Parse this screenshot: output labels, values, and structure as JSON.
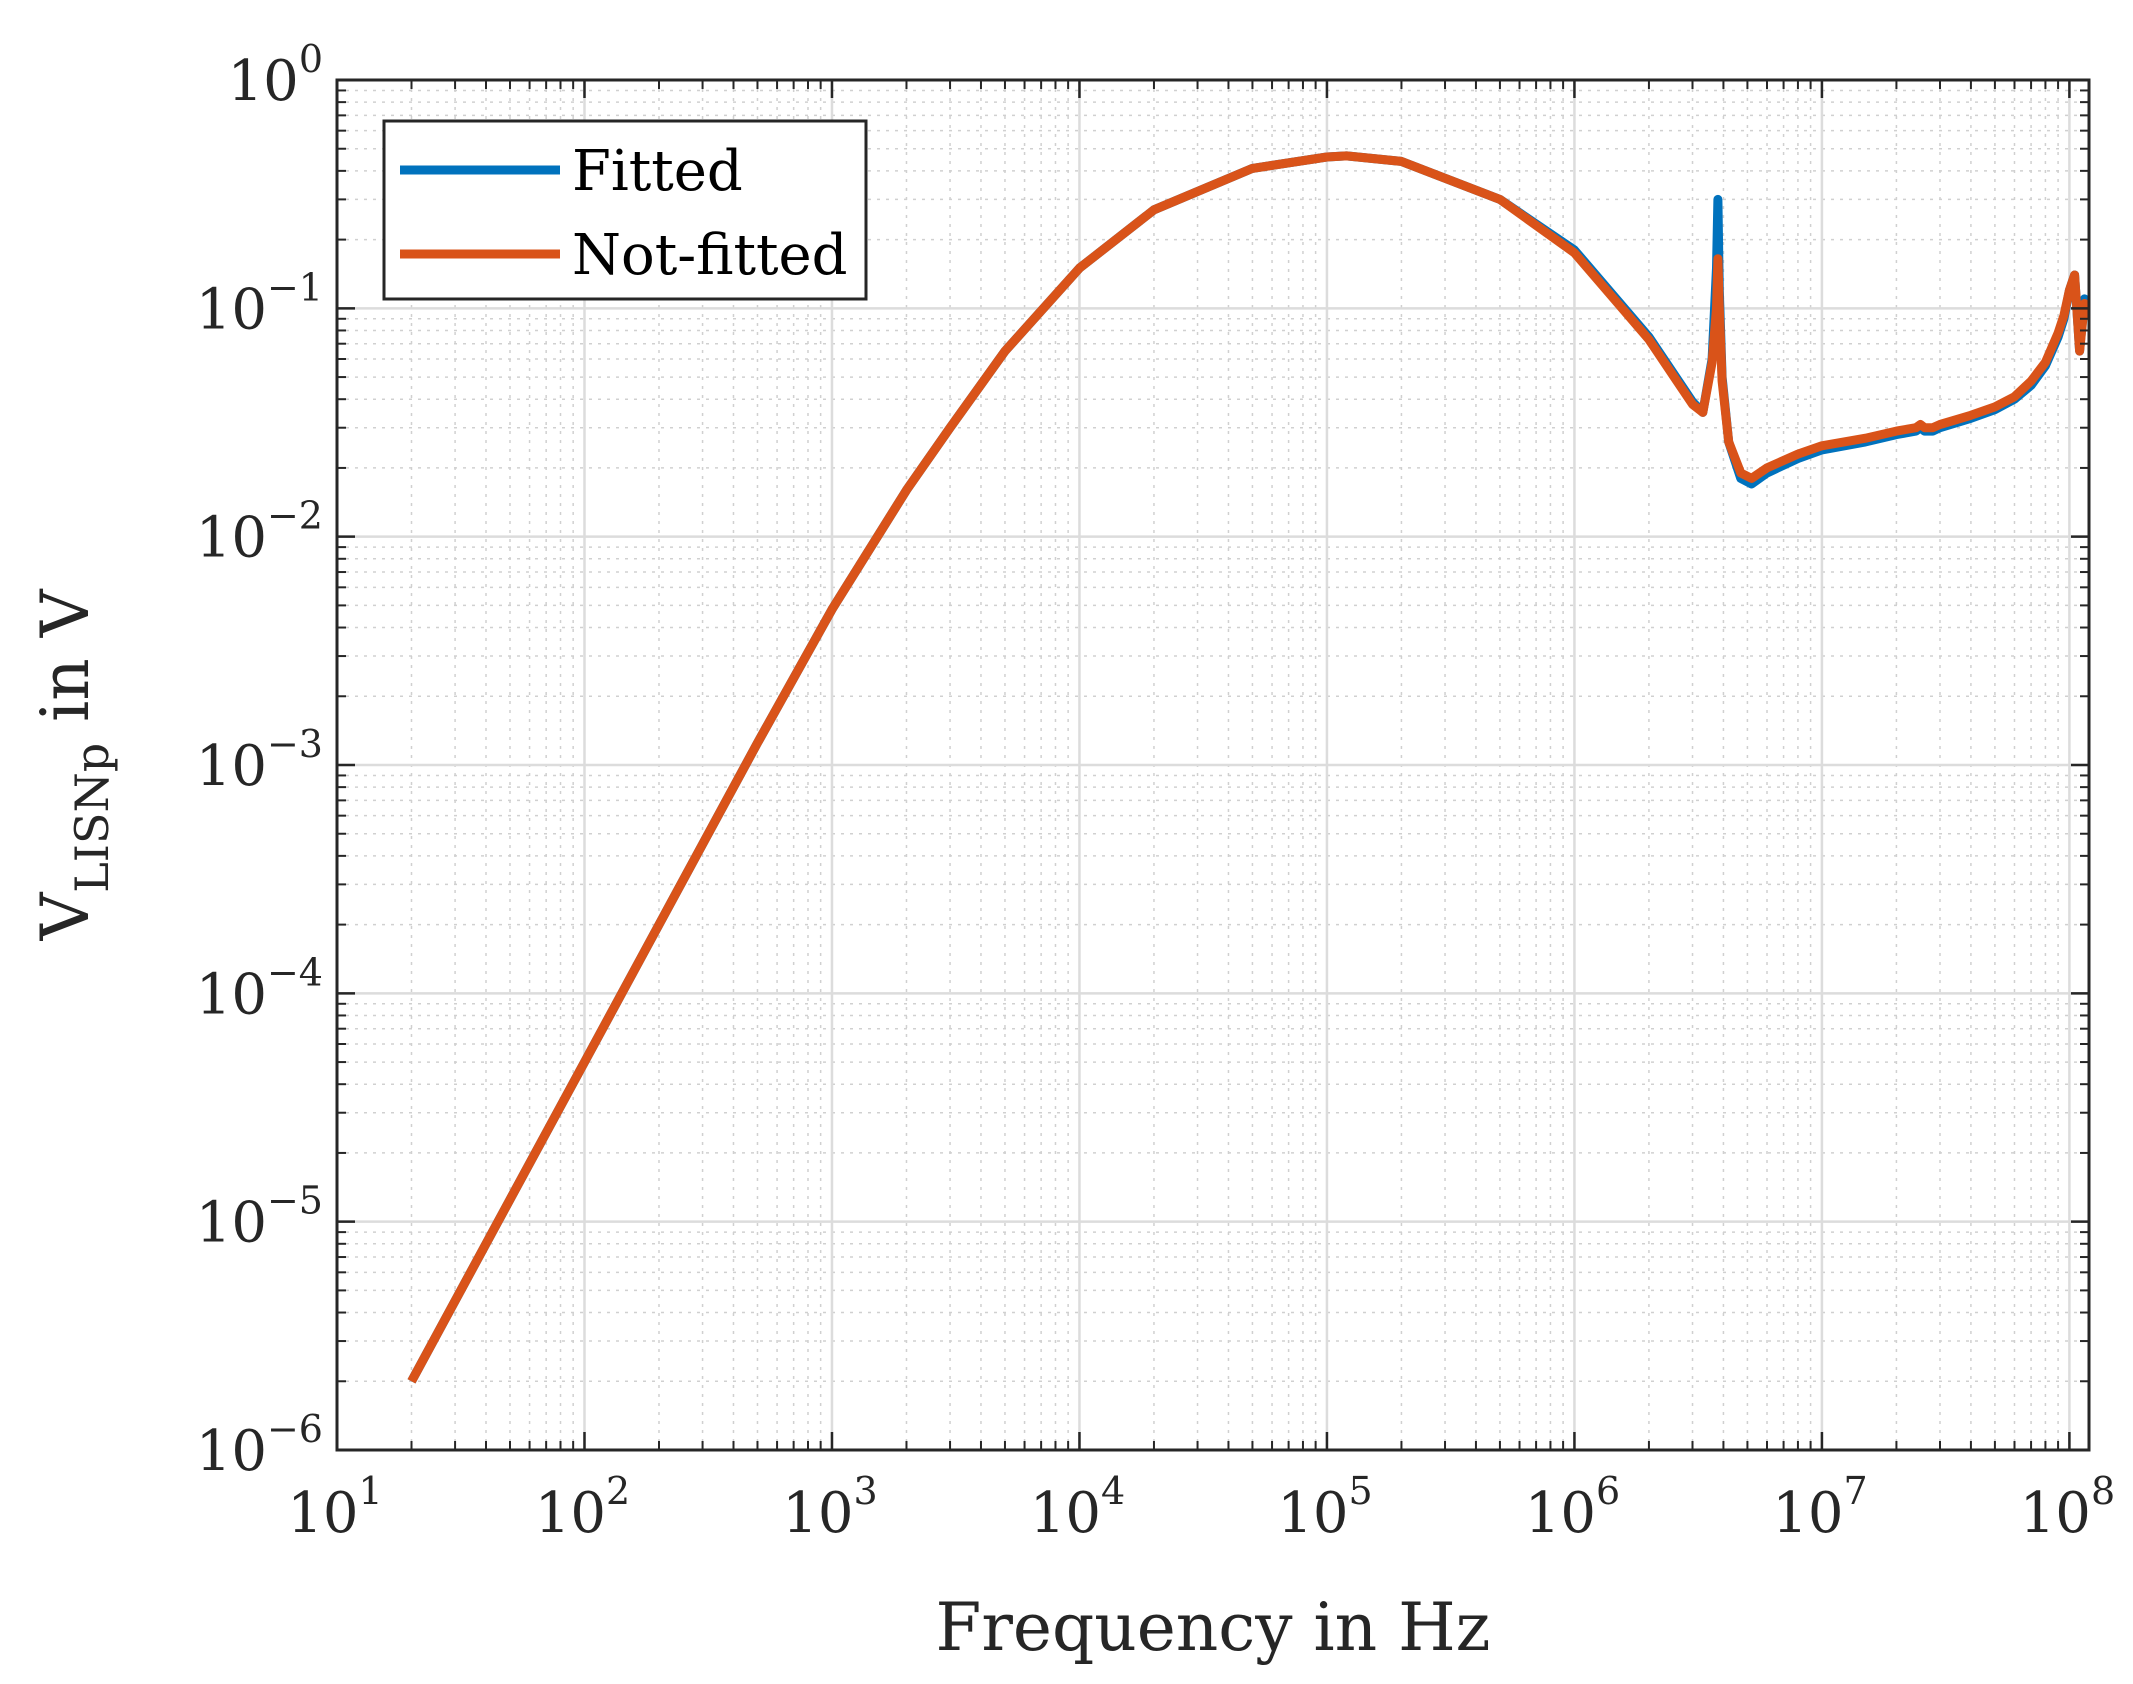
{
  "chart_data": {
    "type": "line",
    "title": "",
    "xlabel": "Frequency in Hz",
    "ylabel": {
      "main": "V",
      "subscript": "LISNp",
      "suffix": " in V"
    },
    "xscale": "log",
    "yscale": "log",
    "xlim": [
      10,
      120000000
    ],
    "ylim": [
      1e-06,
      1
    ],
    "grid": true,
    "minor_grid": true,
    "legend_position": "top-left",
    "x_ticks": [
      {
        "base": "10",
        "exp": "1",
        "value": 10
      },
      {
        "base": "10",
        "exp": "2",
        "value": 100
      },
      {
        "base": "10",
        "exp": "3",
        "value": 1000
      },
      {
        "base": "10",
        "exp": "4",
        "value": 10000
      },
      {
        "base": "10",
        "exp": "5",
        "value": 100000
      },
      {
        "base": "10",
        "exp": "6",
        "value": 1000000
      },
      {
        "base": "10",
        "exp": "7",
        "value": 10000000
      },
      {
        "base": "10",
        "exp": "8",
        "value": 100000000
      }
    ],
    "y_ticks": [
      {
        "base": "10",
        "exp": "−6",
        "value": 1e-06
      },
      {
        "base": "10",
        "exp": "−5",
        "value": 1e-05
      },
      {
        "base": "10",
        "exp": "−4",
        "value": 0.0001
      },
      {
        "base": "10",
        "exp": "−3",
        "value": 0.001
      },
      {
        "base": "10",
        "exp": "−2",
        "value": 0.01
      },
      {
        "base": "10",
        "exp": "−1",
        "value": 0.1
      },
      {
        "base": "10",
        "exp": "0",
        "value": 1
      }
    ],
    "series": [
      {
        "name": "Fitted",
        "color": "#0072BD",
        "x": [
          20,
          50,
          100,
          200,
          500,
          1000,
          2000,
          3000,
          5000,
          10000,
          20000,
          50000,
          100000,
          120000,
          200000,
          500000,
          1000000,
          2000000,
          3000000,
          3300000,
          3600000,
          3750000,
          3800000,
          3850000,
          3950000,
          4200000,
          4700000,
          5200000,
          6000000,
          8000000,
          10000000,
          15000000,
          20000000,
          24000000,
          25000000,
          26000000,
          28000000,
          30000000,
          40000000,
          50000000,
          60000000,
          70000000,
          80000000,
          90000000,
          95000000,
          100000000,
          105000000,
          110000000,
          115000000,
          120000000
        ],
        "values": [
          2e-06,
          1.25e-05,
          5e-05,
          0.0002,
          0.00125,
          0.0048,
          0.016,
          0.03,
          0.065,
          0.15,
          0.27,
          0.41,
          0.46,
          0.465,
          0.44,
          0.3,
          0.18,
          0.075,
          0.039,
          0.035,
          0.06,
          0.15,
          0.3,
          0.12,
          0.05,
          0.026,
          0.018,
          0.017,
          0.019,
          0.022,
          0.024,
          0.026,
          0.028,
          0.029,
          0.03,
          0.029,
          0.029,
          0.03,
          0.033,
          0.036,
          0.04,
          0.046,
          0.056,
          0.075,
          0.09,
          0.12,
          0.14,
          0.065,
          0.11,
          0.1
        ]
      },
      {
        "name": "Not-fitted",
        "color": "#D95319",
        "x": [
          20,
          50,
          100,
          200,
          500,
          1000,
          2000,
          3000,
          5000,
          10000,
          20000,
          50000,
          100000,
          120000,
          200000,
          500000,
          1000000,
          2000000,
          3000000,
          3300000,
          3600000,
          3750000,
          3800000,
          3850000,
          3950000,
          4200000,
          4700000,
          5200000,
          6000000,
          8000000,
          10000000,
          15000000,
          20000000,
          24000000,
          25000000,
          26000000,
          28000000,
          30000000,
          40000000,
          50000000,
          60000000,
          70000000,
          80000000,
          90000000,
          95000000,
          100000000,
          105000000,
          110000000,
          115000000,
          120000000
        ],
        "values": [
          2e-06,
          1.25e-05,
          5e-05,
          0.0002,
          0.00125,
          0.0048,
          0.016,
          0.03,
          0.065,
          0.15,
          0.27,
          0.41,
          0.46,
          0.465,
          0.44,
          0.3,
          0.175,
          0.073,
          0.038,
          0.035,
          0.058,
          0.1,
          0.165,
          0.1,
          0.048,
          0.026,
          0.019,
          0.018,
          0.02,
          0.023,
          0.025,
          0.027,
          0.029,
          0.03,
          0.031,
          0.03,
          0.03,
          0.031,
          0.034,
          0.037,
          0.041,
          0.048,
          0.058,
          0.078,
          0.093,
          0.12,
          0.14,
          0.065,
          0.105,
          0.095
        ]
      }
    ]
  }
}
